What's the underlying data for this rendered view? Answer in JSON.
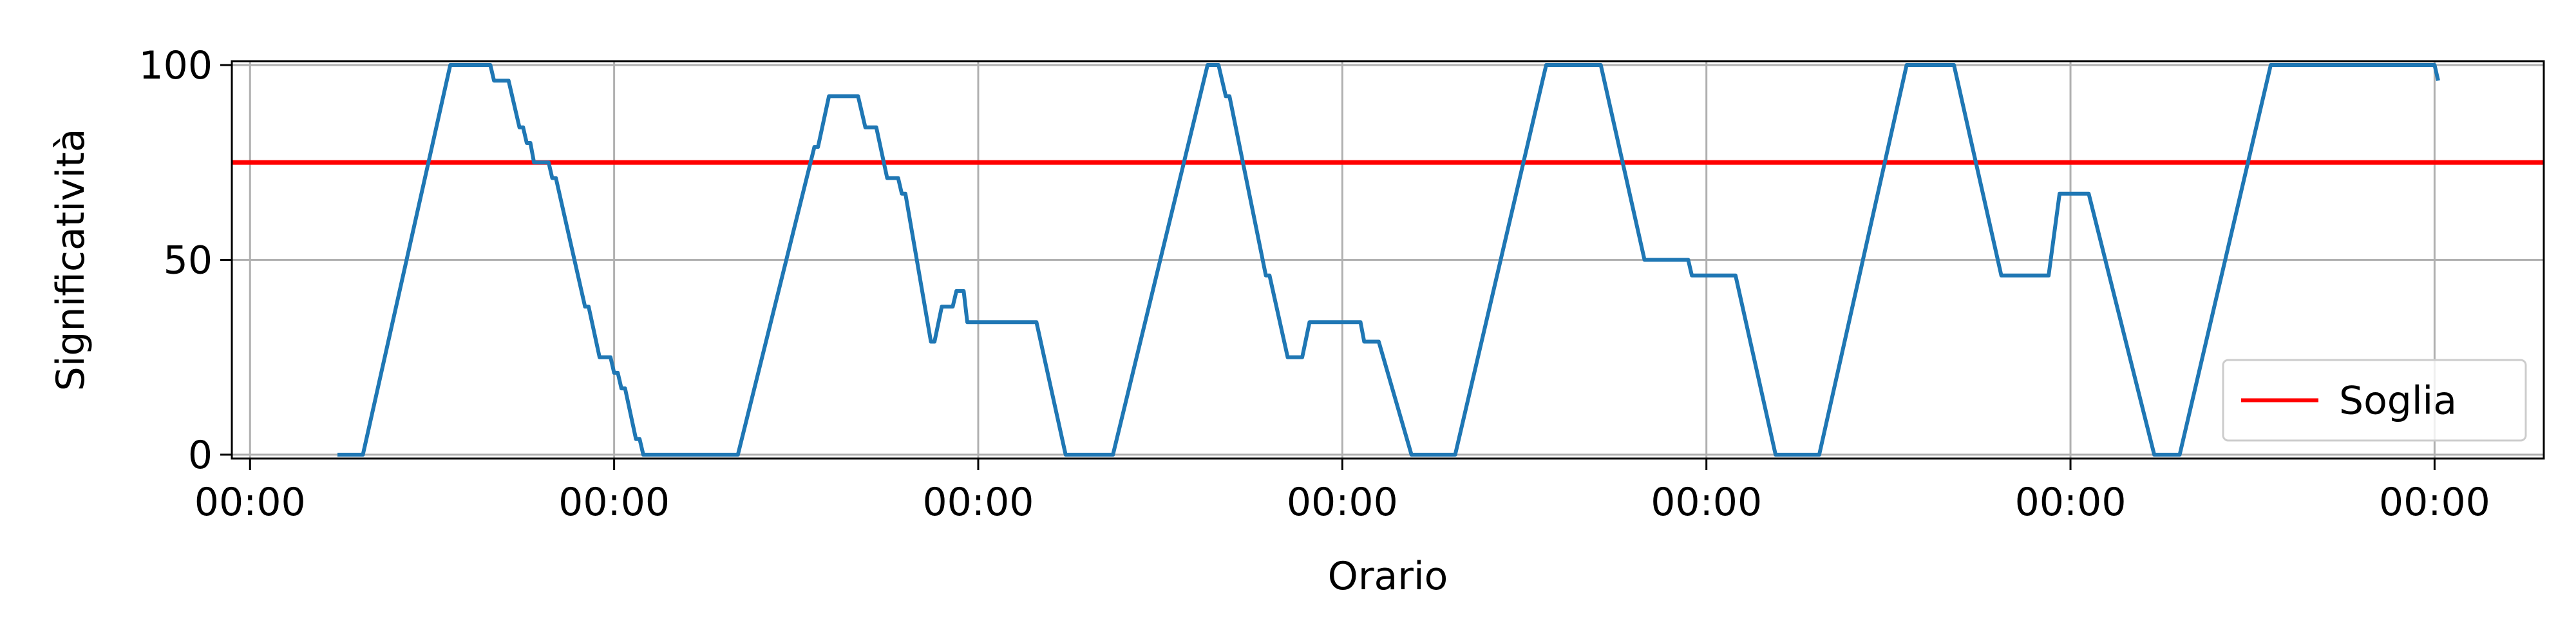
{
  "chart_data": {
    "type": "line",
    "title": "",
    "xlabel": "Orario",
    "ylabel": "Significatività",
    "x_tick_labels": [
      "00:00",
      "00:00",
      "00:00",
      "00:00",
      "00:00",
      "00:00",
      "00:00"
    ],
    "y_ticks": [
      0,
      50,
      100
    ],
    "xlim": [
      -0.05,
      6.3
    ],
    "ylim": [
      -1,
      101
    ],
    "grid": true,
    "legend_position": "lower-right",
    "series": [
      {
        "name": "",
        "color": "#1f77b4",
        "points": [
          [
            0.24,
            0
          ],
          [
            0.31,
            0
          ],
          [
            0.55,
            100
          ],
          [
            0.66,
            100
          ],
          [
            0.67,
            96
          ],
          [
            0.71,
            96
          ],
          [
            0.74,
            84
          ],
          [
            0.75,
            84
          ],
          [
            0.76,
            80
          ],
          [
            0.77,
            80
          ],
          [
            0.78,
            75
          ],
          [
            0.82,
            75
          ],
          [
            0.83,
            71
          ],
          [
            0.84,
            71
          ],
          [
            0.92,
            38
          ],
          [
            0.93,
            38
          ],
          [
            0.96,
            25
          ],
          [
            0.99,
            25
          ],
          [
            1.0,
            21
          ],
          [
            1.01,
            21
          ],
          [
            1.02,
            17
          ],
          [
            1.03,
            17
          ],
          [
            1.06,
            4
          ],
          [
            1.07,
            4
          ],
          [
            1.08,
            0
          ],
          [
            1.34,
            0
          ],
          [
            1.55,
            79
          ],
          [
            1.56,
            79
          ],
          [
            1.59,
            92
          ],
          [
            1.67,
            92
          ],
          [
            1.69,
            84
          ],
          [
            1.72,
            84
          ],
          [
            1.75,
            71
          ],
          [
            1.78,
            71
          ],
          [
            1.79,
            67
          ],
          [
            1.8,
            67
          ],
          [
            1.87,
            29
          ],
          [
            1.88,
            29
          ],
          [
            1.9,
            38
          ],
          [
            1.93,
            38
          ],
          [
            1.94,
            42
          ],
          [
            1.96,
            42
          ],
          [
            1.97,
            34
          ],
          [
            2.16,
            34
          ],
          [
            2.24,
            0
          ],
          [
            2.37,
            0
          ],
          [
            2.63,
            100
          ],
          [
            2.66,
            100
          ],
          [
            2.68,
            92
          ],
          [
            2.69,
            92
          ],
          [
            2.79,
            46
          ],
          [
            2.8,
            46
          ],
          [
            2.85,
            25
          ],
          [
            2.89,
            25
          ],
          [
            2.91,
            34
          ],
          [
            3.05,
            34
          ],
          [
            3.06,
            29
          ],
          [
            3.1,
            29
          ],
          [
            3.19,
            0
          ],
          [
            3.31,
            0
          ],
          [
            3.56,
            100
          ],
          [
            3.71,
            100
          ],
          [
            3.83,
            50
          ],
          [
            3.95,
            50
          ],
          [
            3.96,
            46
          ],
          [
            4.08,
            46
          ],
          [
            4.19,
            0
          ],
          [
            4.31,
            0
          ],
          [
            4.55,
            100
          ],
          [
            4.68,
            100
          ],
          [
            4.81,
            46
          ],
          [
            4.94,
            46
          ],
          [
            4.97,
            67
          ],
          [
            5.05,
            67
          ],
          [
            5.23,
            0
          ],
          [
            5.3,
            0
          ],
          [
            5.55,
            100
          ],
          [
            6.0,
            100
          ],
          [
            6.01,
            96
          ]
        ]
      }
    ],
    "reference_lines": [
      {
        "name": "Soglia",
        "y": 75,
        "color": "#ff0000"
      }
    ],
    "legend": [
      {
        "label": "Soglia",
        "color": "#ff0000"
      }
    ]
  }
}
